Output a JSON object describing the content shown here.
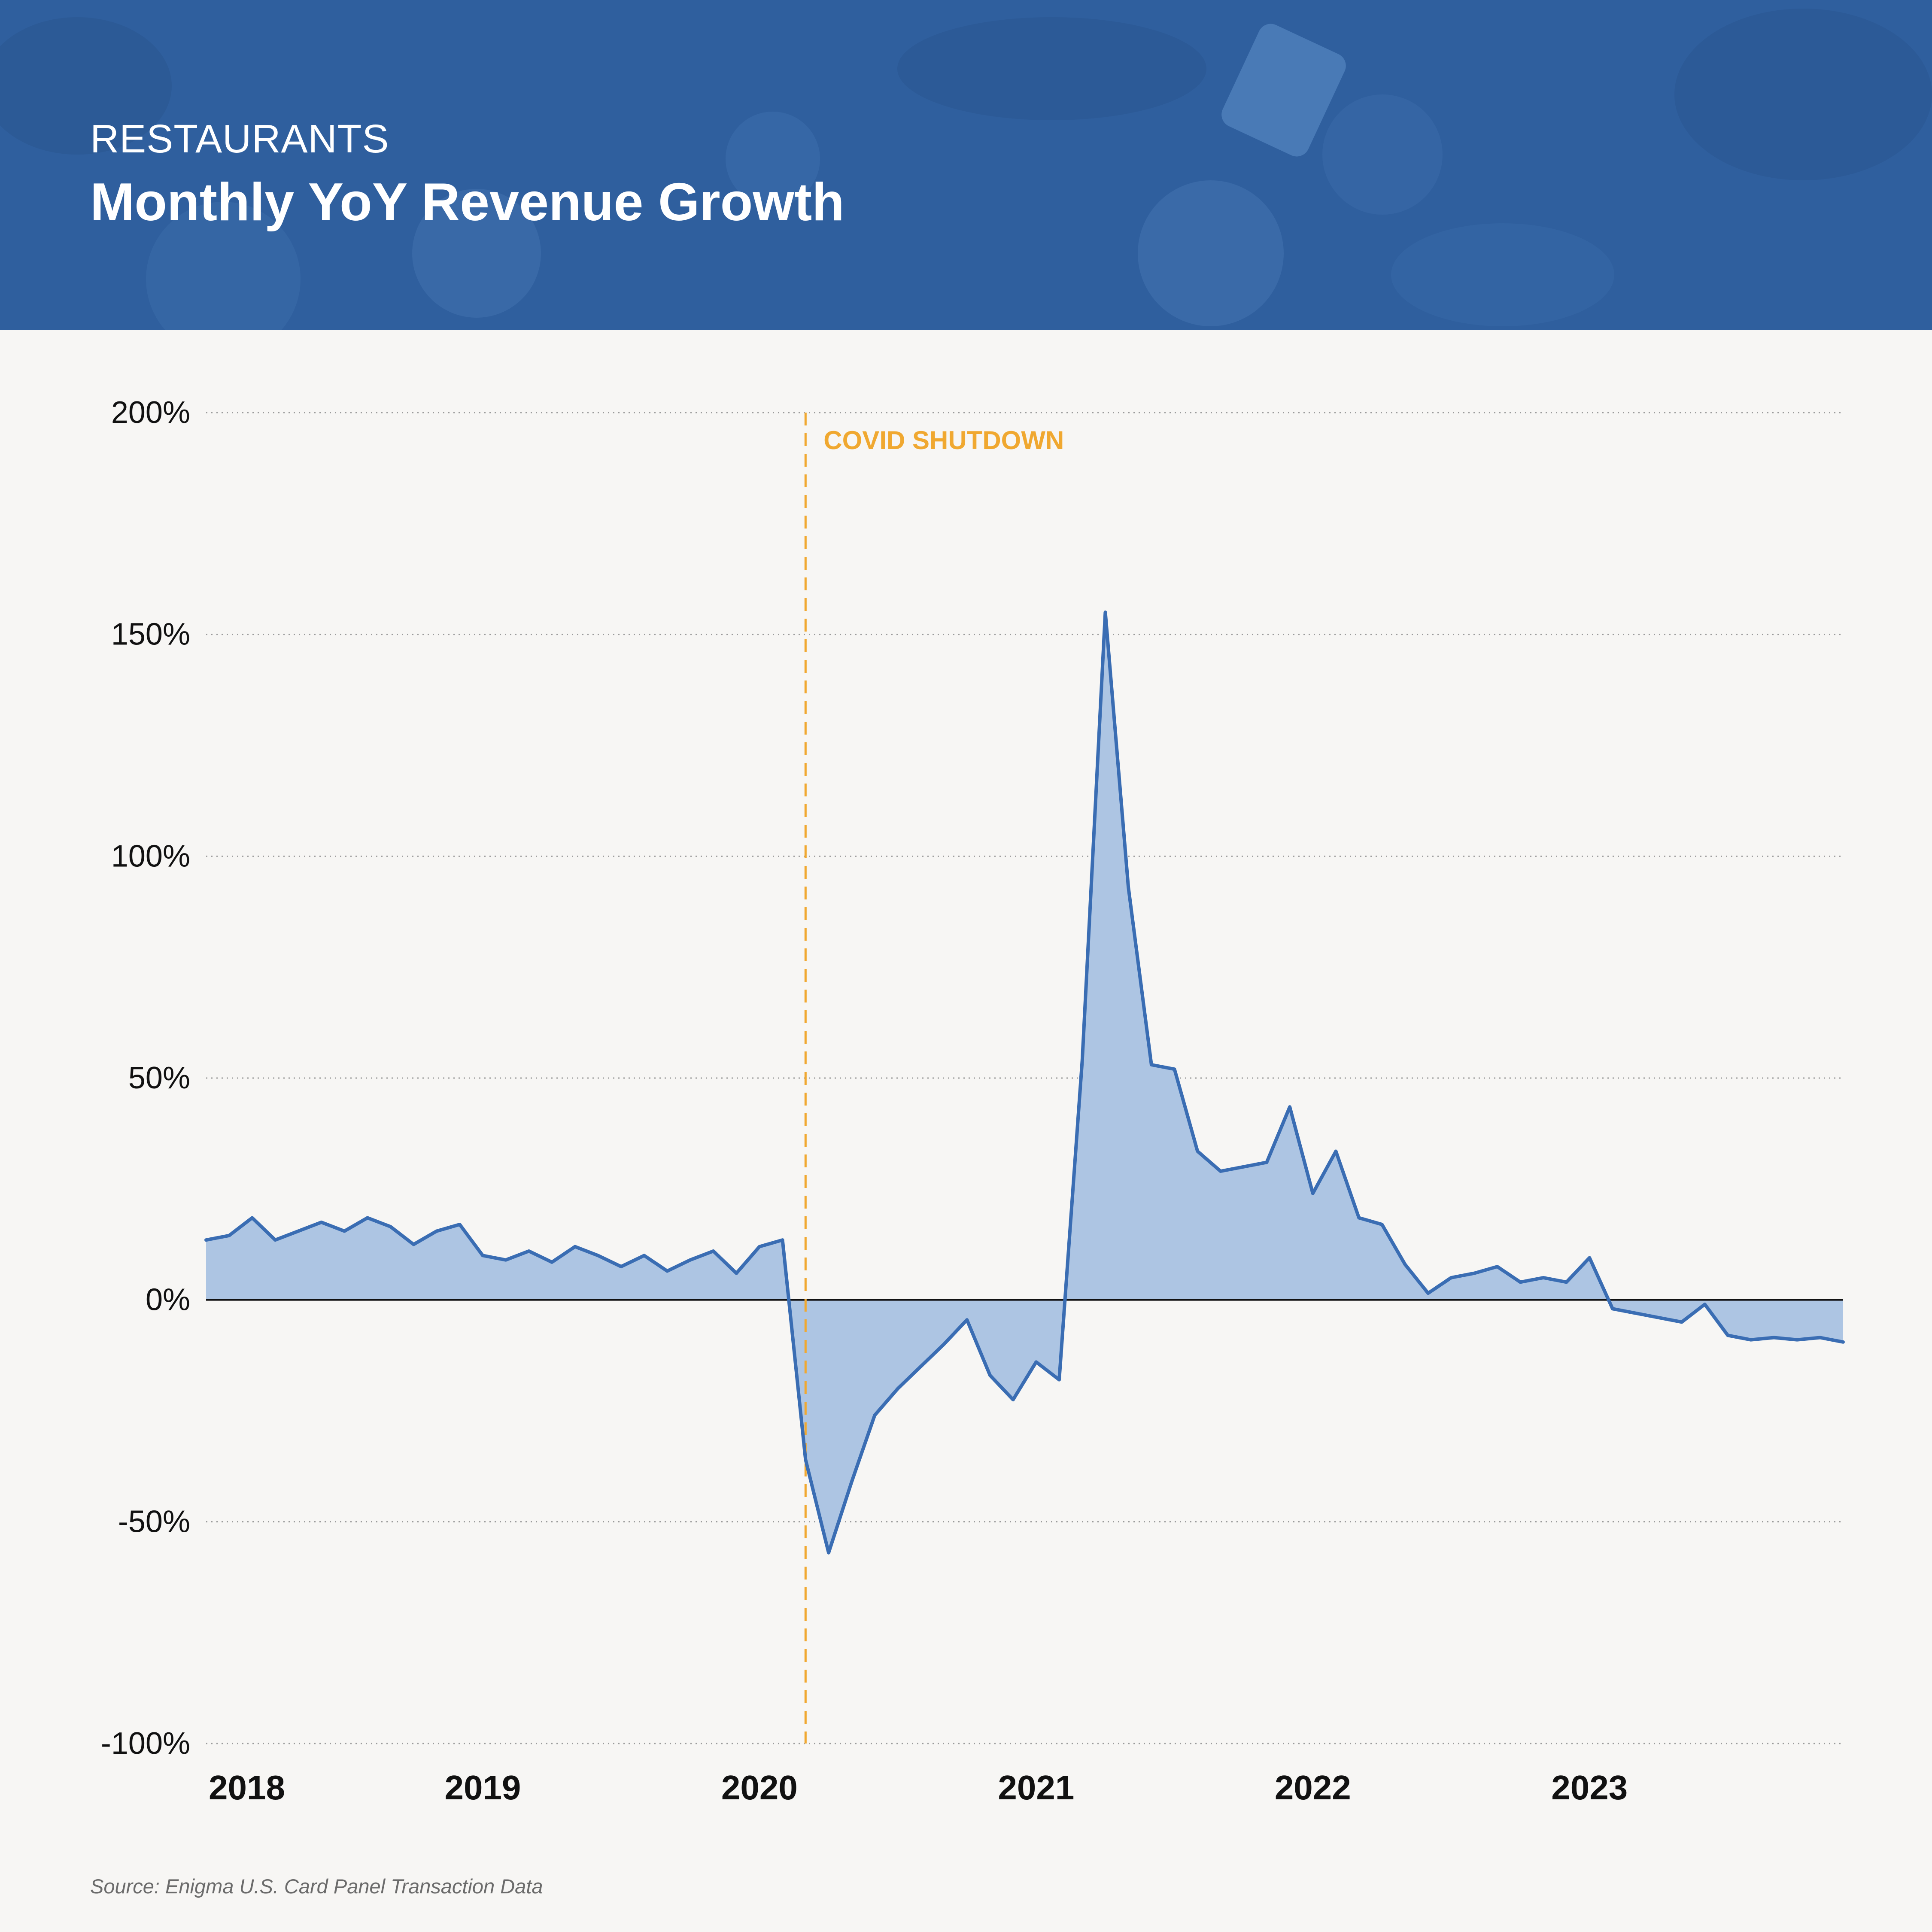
{
  "header": {
    "kicker": "RESTAURANTS",
    "title": "Monthly YoY Revenue Growth"
  },
  "source": "Source: Enigma U.S. Card Panel Transaction Data",
  "colors": {
    "header_bg": "#2f5f9e",
    "line": "#3a6db3",
    "fill": "#adc5e3",
    "annotation": "#f0a830",
    "zero_line": "#111111",
    "grid": "#9a9a9a"
  },
  "chart_data": {
    "type": "area",
    "x_start": "2018-01",
    "x_end": "2023-12",
    "x_tick_labels": [
      "2018",
      "2019",
      "2020",
      "2021",
      "2022",
      "2023"
    ],
    "y_tick_labels": [
      "200%",
      "150%",
      "100%",
      "50%",
      "0%",
      "-50%",
      "-100%"
    ],
    "ylim": [
      -100,
      200
    ],
    "y_ticks": [
      200,
      150,
      100,
      50,
      0,
      -50,
      -100
    ],
    "grid": "horizontal dotted",
    "annotation": {
      "label": "COVID SHUTDOWN",
      "x": "2020-03",
      "style": "dashed vertical line"
    },
    "series": [
      {
        "x": [
          "2018-01",
          "2018-02",
          "2018-03",
          "2018-04",
          "2018-05",
          "2018-06",
          "2018-07",
          "2018-08",
          "2018-09",
          "2018-10",
          "2018-11",
          "2018-12",
          "2019-01",
          "2019-02",
          "2019-03",
          "2019-04",
          "2019-05",
          "2019-06",
          "2019-07",
          "2019-08",
          "2019-09",
          "2019-10",
          "2019-11",
          "2019-12",
          "2020-01",
          "2020-02",
          "2020-03",
          "2020-04",
          "2020-05",
          "2020-06",
          "2020-07",
          "2020-08",
          "2020-09",
          "2020-10",
          "2020-11",
          "2020-12",
          "2021-01",
          "2021-02",
          "2021-03",
          "2021-04",
          "2021-05",
          "2021-06",
          "2021-07",
          "2021-08",
          "2021-09",
          "2021-10",
          "2021-11",
          "2021-12",
          "2022-01",
          "2022-02",
          "2022-03",
          "2022-04",
          "2022-05",
          "2022-06",
          "2022-07",
          "2022-08",
          "2022-09",
          "2022-10",
          "2022-11",
          "2022-12",
          "2023-01",
          "2023-02",
          "2023-03",
          "2023-04",
          "2023-05",
          "2023-06",
          "2023-07",
          "2023-08",
          "2023-09",
          "2023-10",
          "2023-11",
          "2023-12"
        ],
        "values": [
          13.5,
          14.5,
          18.5,
          13.5,
          15.5,
          17.5,
          15.5,
          18.5,
          16.5,
          12.5,
          15.5,
          17.0,
          10.0,
          9.0,
          11.0,
          8.5,
          12.0,
          10.0,
          7.5,
          10.0,
          6.5,
          9.0,
          11.0,
          6.0,
          12.0,
          13.5,
          -36.0,
          -57.0,
          -41.0,
          -26.0,
          -20.0,
          -15.0,
          -10.0,
          -4.5,
          -17.0,
          -22.5,
          -14.0,
          -18.0,
          54.0,
          155.0,
          93.0,
          53.0,
          52.0,
          33.5,
          29.0,
          30.0,
          31.0,
          43.5,
          24.0,
          33.5,
          18.5,
          17.0,
          8.0,
          1.5,
          5.0,
          6.0,
          7.5,
          4.0,
          5.0,
          4.0,
          9.5,
          -2.0,
          -3.0,
          -4.0,
          -5.0,
          -1.0,
          -8.0,
          -9.0,
          -8.5,
          -9.0,
          -8.5,
          -9.5
        ]
      }
    ]
  }
}
